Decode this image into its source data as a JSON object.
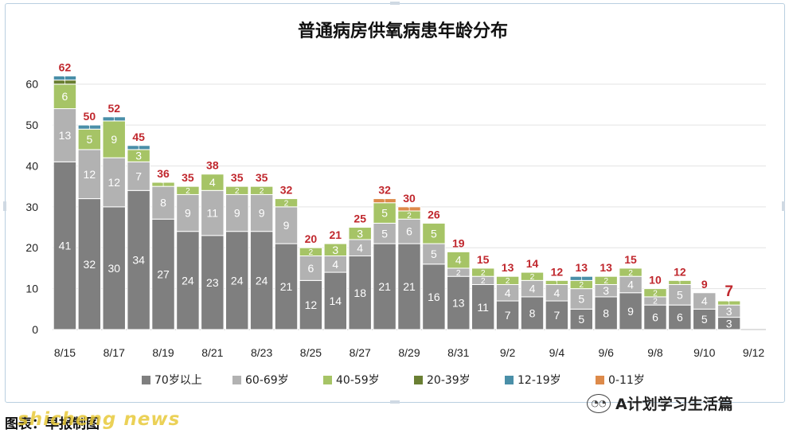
{
  "chart_data": {
    "type": "bar",
    "stacked": true,
    "title": "普通病房供氧病患年龄分布",
    "categories": [
      "8/15",
      "8/16",
      "8/17",
      "8/18",
      "8/19",
      "8/20",
      "8/21",
      "8/22",
      "8/23",
      "8/24",
      "8/25",
      "8/26",
      "8/27",
      "8/28",
      "8/29",
      "8/30",
      "8/31",
      "9/1",
      "9/2",
      "9/3",
      "9/4",
      "9/5",
      "9/6",
      "9/7",
      "9/8",
      "9/9",
      "9/10",
      "9/11",
      "9/12"
    ],
    "x_tick_labels": [
      "8/15",
      "8/17",
      "8/19",
      "8/21",
      "8/23",
      "8/25",
      "8/27",
      "8/29",
      "8/31",
      "9/2",
      "9/4",
      "9/6",
      "9/8",
      "9/10",
      "9/12"
    ],
    "ylim": [
      0,
      65
    ],
    "y_ticks": [
      0,
      10,
      20,
      30,
      40,
      50,
      60
    ],
    "grid": true,
    "legend_position": "bottom",
    "series": [
      {
        "name": "70岁以上",
        "color": "#7f7f7f",
        "label_color": "#ffffff",
        "values": [
          41,
          32,
          30,
          34,
          27,
          24,
          23,
          24,
          24,
          21,
          12,
          14,
          18,
          21,
          21,
          16,
          13,
          11,
          7,
          8,
          7,
          5,
          8,
          9,
          6,
          6,
          5,
          3,
          0
        ]
      },
      {
        "name": "60-69岁",
        "color": "#b2b2b2",
        "label_color": "#ffffff",
        "values": [
          13,
          12,
          12,
          7,
          8,
          9,
          11,
          9,
          9,
          9,
          6,
          4,
          4,
          5,
          6,
          5,
          2,
          2,
          4,
          4,
          4,
          5,
          3,
          4,
          2,
          5,
          4,
          3,
          0
        ]
      },
      {
        "name": "40-59岁",
        "color": "#a6c466",
        "label_color": "#ffffff",
        "values": [
          6,
          5,
          9,
          3,
          1,
          2,
          4,
          2,
          2,
          2,
          2,
          3,
          3,
          5,
          2,
          5,
          4,
          2,
          2,
          2,
          1,
          2,
          2,
          2,
          2,
          1,
          0,
          1,
          0
        ]
      },
      {
        "name": "20-39岁",
        "color": "#6a7f33",
        "label_color": "#ffffff",
        "values": [
          1,
          0,
          0,
          0,
          0,
          0,
          0,
          0,
          0,
          0,
          0,
          0,
          0,
          0,
          0,
          0,
          0,
          0,
          0,
          0,
          0,
          0,
          0,
          0,
          0,
          0,
          0,
          0,
          0
        ]
      },
      {
        "name": "12-19岁",
        "color": "#4a8fa8",
        "label_color": "#ffffff",
        "values": [
          1,
          1,
          1,
          1,
          0,
          0,
          0,
          0,
          0,
          0,
          0,
          0,
          0,
          0,
          0,
          0,
          0,
          0,
          0,
          0,
          0,
          1,
          0,
          0,
          0,
          0,
          0,
          0,
          0
        ]
      },
      {
        "name": "0-11岁",
        "color": "#dd8a4a",
        "label_color": "#ffffff",
        "values": [
          0,
          0,
          0,
          0,
          0,
          0,
          0,
          0,
          0,
          0,
          0,
          0,
          0,
          1,
          1,
          0,
          0,
          0,
          0,
          0,
          0,
          0,
          0,
          0,
          0,
          0,
          0,
          0,
          0
        ]
      }
    ],
    "totals": [
      62,
      50,
      52,
      45,
      36,
      35,
      38,
      35,
      35,
      32,
      20,
      21,
      25,
      32,
      30,
      26,
      19,
      15,
      13,
      14,
      12,
      13,
      13,
      15,
      10,
      12,
      9,
      7,
      null
    ],
    "total_label_color": "#c0272d"
  },
  "watermark": {
    "icon": "wechat-icon",
    "text": "A计划学习生活篇"
  },
  "caption": {
    "text": "图表：早报制图",
    "overlay": "shicheng news"
  }
}
